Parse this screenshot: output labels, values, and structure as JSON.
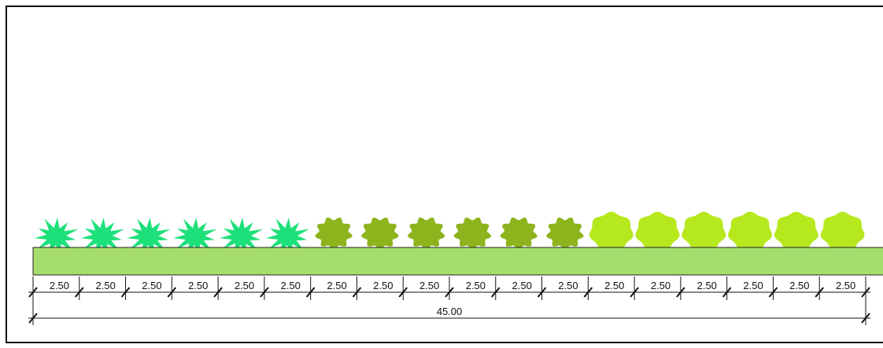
{
  "dimensions": {
    "segments": [
      "2.50",
      "2.50",
      "2.50",
      "2.50",
      "2.50",
      "2.50",
      "2.50",
      "2.50",
      "2.50",
      "2.50",
      "2.50",
      "2.50",
      "2.50",
      "2.50",
      "2.50",
      "2.50",
      "2.50",
      "2.50"
    ],
    "total": "45.00"
  }
}
